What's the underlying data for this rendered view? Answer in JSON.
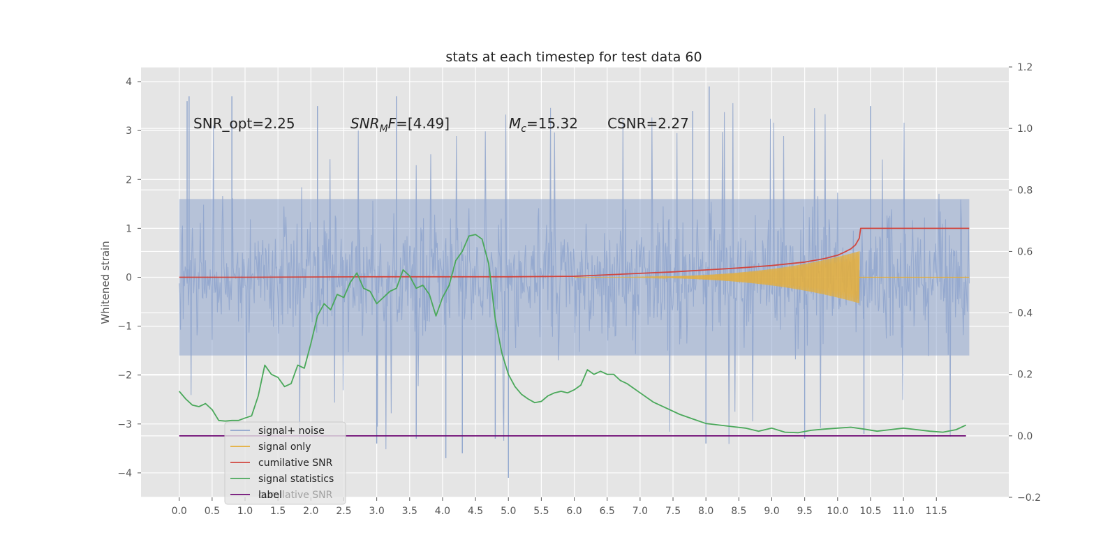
{
  "chart_data": {
    "type": "line",
    "title": "stats at each timestep for test data 60",
    "ylabel": "Whitened strain",
    "xlabel": "",
    "xlim": [
      -0.58,
      12.6
    ],
    "ylim": [
      -4.5,
      4.3
    ],
    "y2lim": [
      -0.2,
      1.2
    ],
    "x_ticks": [
      "0.0",
      "0.5",
      "1.0",
      "1.5",
      "2.0",
      "2.5",
      "3.0",
      "3.5",
      "4.0",
      "4.5",
      "5.0",
      "5.5",
      "6.0",
      "6.5",
      "7.0",
      "7.5",
      "8.0",
      "8.5",
      "9.0",
      "9.5",
      "10.0",
      "10.5",
      "11.0",
      "11.5"
    ],
    "y_ticks": [
      "4",
      "3",
      "2",
      "1",
      "0",
      "−1",
      "−2",
      "−3",
      "−4"
    ],
    "y2_ticks": [
      "1.2",
      "1.0",
      "0.8",
      "0.6",
      "0.4",
      "0.2",
      "0.0",
      "−0.2"
    ],
    "grid": true,
    "legend": "lower-left",
    "annotations": [
      {
        "text": "SNR_opt=2.25",
        "x": 0.2,
        "y": 3.1
      },
      {
        "text": "=[4.49]",
        "x": 2.6,
        "y": 3.1,
        "math_main": "SNR",
        "math_sub": "M",
        "math_tail": "F"
      },
      {
        "text": "=15.32",
        "x": 5.0,
        "y": 3.1,
        "math_main": "M",
        "math_sub": "c"
      },
      {
        "text": "CSNR=2.27",
        "x": 6.5,
        "y": 3.1
      }
    ],
    "series": [
      {
        "name": "signal+ noise",
        "color": "#8fa5cd",
        "axis": "left",
        "noise_model": {
          "x_start": 0.0,
          "x_end": 12.0,
          "envelope_low": -2.1,
          "envelope_high": 2.1,
          "spike_max": 3.9,
          "spike_min": -4.1
        },
        "values": [
          [
            0.12,
            3.6
          ],
          [
            0.15,
            3.7
          ],
          [
            0.8,
            3.7
          ],
          [
            2.1,
            3.5
          ],
          [
            3.0,
            -3.4
          ],
          [
            3.3,
            3.7
          ],
          [
            3.6,
            -3.3
          ],
          [
            4.05,
            -3.7
          ],
          [
            4.3,
            -3.6
          ],
          [
            4.8,
            -3.3
          ],
          [
            5.0,
            -4.1
          ],
          [
            7.8,
            3.4
          ],
          [
            8.05,
            3.9
          ],
          [
            8.0,
            -3.4
          ],
          [
            9.5,
            -3.3
          ],
          [
            10.4,
            -3.2
          ],
          [
            10.5,
            3.5
          ]
        ]
      },
      {
        "name": "signal only",
        "color": "#e5ae38",
        "axis": "left",
        "chirp": {
          "x_start": 6.0,
          "x_merge": 10.33,
          "amp_max": 0.5
        }
      },
      {
        "name": "cumilative SNR",
        "color": "#d1473f",
        "axis": "left",
        "x": [
          0.0,
          1.0,
          2.0,
          3.0,
          4.0,
          5.0,
          6.0,
          6.5,
          7.0,
          7.5,
          8.0,
          8.5,
          9.0,
          9.5,
          9.8,
          10.0,
          10.1,
          10.2,
          10.27,
          10.33,
          10.35,
          12.0
        ],
        "values": [
          0.0,
          0.0,
          0.005,
          0.01,
          0.01,
          0.01,
          0.02,
          0.05,
          0.08,
          0.11,
          0.15,
          0.19,
          0.24,
          0.31,
          0.38,
          0.45,
          0.51,
          0.58,
          0.66,
          0.8,
          1.0,
          1.0
        ]
      },
      {
        "name": "signal statistics",
        "color": "#4aa85a",
        "axis": "right",
        "x": [
          0.0,
          0.1,
          0.2,
          0.3,
          0.4,
          0.5,
          0.6,
          0.7,
          0.8,
          0.9,
          1.0,
          1.1,
          1.2,
          1.3,
          1.4,
          1.5,
          1.6,
          1.7,
          1.8,
          1.9,
          2.0,
          2.1,
          2.2,
          2.3,
          2.4,
          2.5,
          2.6,
          2.7,
          2.8,
          2.9,
          3.0,
          3.1,
          3.2,
          3.3,
          3.4,
          3.5,
          3.6,
          3.7,
          3.8,
          3.9,
          4.0,
          4.1,
          4.2,
          4.3,
          4.4,
          4.5,
          4.6,
          4.7,
          4.8,
          4.9,
          5.0,
          5.1,
          5.2,
          5.3,
          5.4,
          5.5,
          5.6,
          5.7,
          5.8,
          5.9,
          6.0,
          6.1,
          6.2,
          6.3,
          6.4,
          6.5,
          6.6,
          6.7,
          6.8,
          6.9,
          7.0,
          7.2,
          7.4,
          7.6,
          7.8,
          8.0,
          8.2,
          8.4,
          8.6,
          8.8,
          9.0,
          9.2,
          9.4,
          9.6,
          9.8,
          10.0,
          10.2,
          10.4,
          10.6,
          10.8,
          11.0,
          11.2,
          11.4,
          11.6,
          11.8,
          11.95
        ],
        "values": [
          0.145,
          0.12,
          0.1,
          0.095,
          0.105,
          0.085,
          0.05,
          0.048,
          0.05,
          0.05,
          0.058,
          0.065,
          0.13,
          0.23,
          0.2,
          0.19,
          0.16,
          0.17,
          0.23,
          0.22,
          0.3,
          0.39,
          0.43,
          0.41,
          0.46,
          0.45,
          0.5,
          0.53,
          0.48,
          0.47,
          0.43,
          0.45,
          0.47,
          0.48,
          0.54,
          0.52,
          0.48,
          0.49,
          0.46,
          0.39,
          0.45,
          0.49,
          0.57,
          0.6,
          0.65,
          0.655,
          0.64,
          0.56,
          0.38,
          0.27,
          0.2,
          0.16,
          0.135,
          0.12,
          0.108,
          0.112,
          0.13,
          0.14,
          0.145,
          0.14,
          0.15,
          0.165,
          0.215,
          0.2,
          0.21,
          0.2,
          0.2,
          0.18,
          0.17,
          0.155,
          0.14,
          0.11,
          0.09,
          0.07,
          0.055,
          0.04,
          0.035,
          0.03,
          0.025,
          0.015,
          0.025,
          0.012,
          0.01,
          0.018,
          0.022,
          0.025,
          0.028,
          0.022,
          0.015,
          0.02,
          0.025,
          0.02,
          0.015,
          0.012,
          0.02,
          0.035
        ]
      },
      {
        "name": "label",
        "color": "#6f0a75",
        "axis": "right",
        "x": [
          0.0,
          11.95
        ],
        "values": [
          0.0,
          0.0
        ]
      }
    ],
    "legend_ghost_text": "cumilative SNR"
  }
}
